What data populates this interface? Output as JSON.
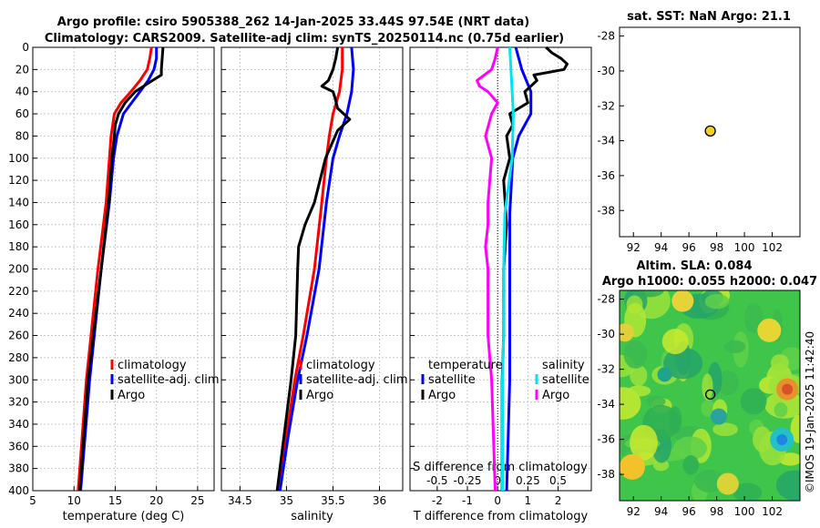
{
  "title": {
    "line1": "Argo profile: csiro 5905388_262 14-Jan-2025 33.44S 97.54E (NRT data)",
    "line2": "Climatology: CARS2009. Satellite-adj clim: synTS_20250114.nc (0.75d earlier)"
  },
  "colors": {
    "climatology": "#ff0000",
    "satellite": "#0000ff",
    "argo": "#000000",
    "sal_satellite": "#00e5ee",
    "sal_argo": "#ff00ff",
    "grid": "#c8c8c8",
    "float_marker": "#f2d01e"
  },
  "depth_ticks": [
    "0",
    "20",
    "40",
    "60",
    "80",
    "100",
    "120",
    "140",
    "160",
    "180",
    "200",
    "220",
    "240",
    "260",
    "280",
    "300",
    "320",
    "340",
    "360",
    "380",
    "400"
  ],
  "chart_data": [
    {
      "type": "line",
      "name": "temperature",
      "xlabel": "temperature (deg C)",
      "xlim": [
        5,
        27
      ],
      "ylim": [
        400,
        0
      ],
      "xticks": [
        "5",
        "10",
        "15",
        "20",
        "25"
      ],
      "legend": [
        "climatology",
        "satellite-adj. clim",
        "Argo"
      ],
      "series": [
        {
          "name": "climatology",
          "depth": [
            0,
            10,
            20,
            30,
            40,
            50,
            60,
            80,
            100,
            140,
            200,
            300,
            400
          ],
          "values": [
            19.4,
            19.2,
            18.9,
            18.0,
            16.9,
            15.7,
            14.9,
            14.5,
            14.3,
            13.9,
            12.9,
            11.5,
            10.5
          ]
        },
        {
          "name": "satellite-adj. clim",
          "depth": [
            0,
            10,
            20,
            30,
            40,
            50,
            60,
            80,
            100,
            140,
            200,
            300,
            400
          ],
          "values": [
            20.0,
            20.0,
            19.7,
            19.0,
            18.0,
            17.0,
            16.0,
            15.2,
            14.8,
            14.3,
            13.3,
            11.9,
            10.8
          ]
        },
        {
          "name": "Argo",
          "depth": [
            0,
            10,
            20,
            25,
            30,
            40,
            50,
            60,
            70,
            80,
            100,
            140,
            200,
            300,
            400
          ],
          "values": [
            20.8,
            20.7,
            20.6,
            20.6,
            19.5,
            17.4,
            16.2,
            15.4,
            15.0,
            14.9,
            14.6,
            14.2,
            13.3,
            11.7,
            10.7
          ]
        }
      ]
    },
    {
      "type": "line",
      "name": "salinity",
      "xlabel": "salinity",
      "xlim": [
        34.3,
        36.25
      ],
      "ylim": [
        400,
        0
      ],
      "xticks": [
        "34.5",
        "35",
        "35.5",
        "36"
      ],
      "legend": [
        "climatology",
        "satellite-adj. clim",
        "Argo"
      ],
      "series": [
        {
          "name": "climatology",
          "depth": [
            0,
            20,
            40,
            60,
            80,
            100,
            140,
            200,
            260,
            300,
            350,
            400
          ],
          "values": [
            35.6,
            35.6,
            35.57,
            35.5,
            35.46,
            35.43,
            35.38,
            35.3,
            35.18,
            35.09,
            35.0,
            34.9
          ]
        },
        {
          "name": "satellite-adj. clim",
          "depth": [
            0,
            20,
            40,
            60,
            80,
            100,
            140,
            200,
            260,
            300,
            350,
            400
          ],
          "values": [
            35.7,
            35.72,
            35.7,
            35.65,
            35.57,
            35.5,
            35.43,
            35.35,
            35.22,
            35.12,
            35.02,
            34.93
          ]
        },
        {
          "name": "Argo",
          "depth": [
            0,
            10,
            20,
            30,
            35,
            40,
            45,
            55,
            65,
            75,
            100,
            140,
            160,
            180,
            200,
            260,
            300,
            400
          ],
          "values": [
            35.55,
            35.53,
            35.5,
            35.45,
            35.38,
            35.5,
            35.52,
            35.55,
            35.68,
            35.55,
            35.42,
            35.3,
            35.2,
            35.13,
            35.12,
            35.1,
            35.05,
            34.9
          ]
        }
      ]
    },
    {
      "type": "line",
      "name": "difference",
      "xlabel": "T difference from climatology",
      "top_xlabel": "S difference from climatology",
      "xlim": [
        -2.9,
        3.1
      ],
      "ylim": [
        400,
        0
      ],
      "xticks": [
        "-2",
        "-1",
        "0",
        "1",
        "2"
      ],
      "top_xticks": [
        "-0.5",
        "-0.25",
        "0",
        "0.25",
        "0.5"
      ],
      "legend_temperature_title": "temperature",
      "legend_salinity_title": "salinity",
      "legend": [
        "satellite",
        "Argo",
        "satellite",
        "Argo"
      ],
      "series": [
        {
          "name": "temperature satellite",
          "depth": [
            0,
            20,
            40,
            60,
            80,
            100,
            150,
            200,
            250,
            300,
            350,
            400
          ],
          "values": [
            0.6,
            0.8,
            1.1,
            1.1,
            0.7,
            0.5,
            0.4,
            0.4,
            0.4,
            0.4,
            0.35,
            0.3
          ]
        },
        {
          "name": "temperature Argo",
          "depth": [
            0,
            5,
            10,
            15,
            20,
            25,
            30,
            40,
            50,
            60,
            70,
            80,
            100,
            120,
            160,
            200,
            260,
            300,
            400
          ],
          "values": [
            1.6,
            1.8,
            2.1,
            2.3,
            2.2,
            1.2,
            1.3,
            0.9,
            1.0,
            0.4,
            0.5,
            0.3,
            0.4,
            0.2,
            0.3,
            0.2,
            0.2,
            0.15,
            0.15
          ]
        },
        {
          "name": "salinity satellite",
          "depth": [
            0,
            20,
            40,
            60,
            100,
            150,
            200,
            260,
            300,
            400
          ],
          "values": [
            0.1,
            0.11,
            0.12,
            0.13,
            0.12,
            0.06,
            0.05,
            0.05,
            0.04,
            0.04
          ]
        },
        {
          "name": "salinity Argo",
          "depth": [
            0,
            10,
            20,
            30,
            35,
            40,
            50,
            60,
            80,
            100,
            140,
            160,
            180,
            200,
            260,
            300,
            400
          ],
          "values": [
            0.0,
            -0.02,
            -0.05,
            -0.17,
            -0.15,
            -0.08,
            0.0,
            -0.05,
            -0.1,
            -0.05,
            -0.08,
            -0.08,
            -0.1,
            -0.08,
            -0.08,
            -0.05,
            -0.02
          ]
        }
      ]
    },
    {
      "type": "scatter",
      "name": "sst-map",
      "title": "sat. SST: NaN Argo: 21.1",
      "xlim": [
        91,
        104
      ],
      "ylim": [
        -39.5,
        -27.5
      ],
      "xticks": [
        "92",
        "94",
        "96",
        "98",
        "100",
        "102"
      ],
      "yticks": [
        "-28",
        "-30",
        "-32",
        "-34",
        "-36",
        "-38"
      ],
      "x": [
        97.54
      ],
      "y": [
        -33.44
      ]
    },
    {
      "type": "heatmap",
      "name": "sla-map",
      "title_line1": "Altim. SLA: 0.084",
      "title_line2": "Argo h1000: 0.055 h2000: 0.047",
      "xlim": [
        91,
        104
      ],
      "ylim": [
        -39.5,
        -27.5
      ],
      "xticks": [
        "92",
        "94",
        "96",
        "98",
        "100",
        "102"
      ],
      "yticks": [
        "-28",
        "-30",
        "-32",
        "-34",
        "-36",
        "-38"
      ],
      "x": [
        97.54
      ],
      "y": [
        -33.44
      ]
    }
  ],
  "footer": {
    "credit": "©IMOS 19-Jan-2025 11:42:40"
  }
}
